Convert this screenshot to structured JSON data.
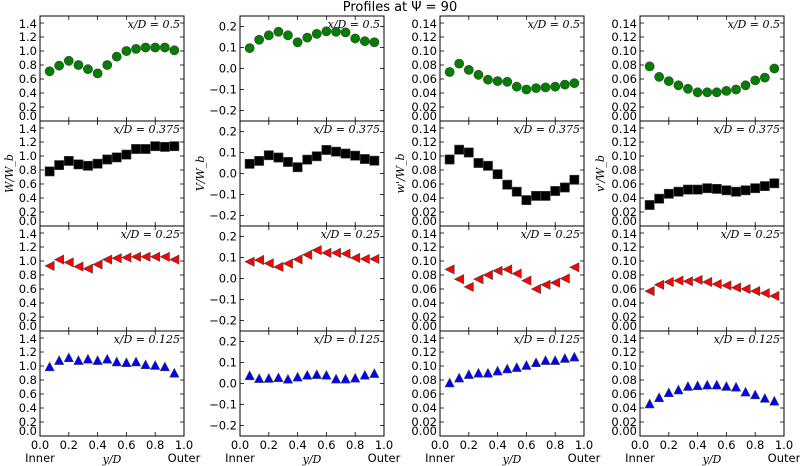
{
  "title": "Profiles at Ψ =  90",
  "x_end_labels": {
    "inner": "Inner",
    "outer": "Outer"
  },
  "chart_data": {
    "type": "scatter",
    "layout": "4 rows x 4 columns, shared x-axis per column",
    "x": [
      0.067,
      0.133,
      0.2,
      0.267,
      0.333,
      0.4,
      0.467,
      0.533,
      0.6,
      0.667,
      0.733,
      0.8,
      0.867,
      0.933
    ],
    "xlim": [
      0,
      1
    ],
    "xticks": [
      "0.0",
      "0.2",
      "0.4",
      "0.6",
      "0.8",
      "1.0"
    ],
    "xlabel": "y/D",
    "rows": [
      {
        "annotation": "x/D = 0.5",
        "marker": "circle",
        "color": "#007f00"
      },
      {
        "annotation": "x/D = 0.375",
        "marker": "square",
        "color": "#000000"
      },
      {
        "annotation": "x/D = 0.25",
        "marker": "triangle-left",
        "color": "#ff0000"
      },
      {
        "annotation": "x/D = 0.125",
        "marker": "triangle-up",
        "color": "#0000ff"
      }
    ],
    "columns": [
      {
        "ylabel": "W/W_b",
        "ylim": [
          0,
          1.5
        ],
        "yticks": [
          "0.0",
          "0.2",
          "0.4",
          "0.6",
          "0.8",
          "1.0",
          "1.2",
          "1.4"
        ],
        "series": [
          [
            0.71,
            0.79,
            0.86,
            0.8,
            0.74,
            0.68,
            0.8,
            0.92,
            1.0,
            1.03,
            1.05,
            1.05,
            1.05,
            1.01
          ],
          [
            0.78,
            0.87,
            0.93,
            0.88,
            0.86,
            0.89,
            0.95,
            0.98,
            1.02,
            1.1,
            1.1,
            1.14,
            1.13,
            1.14
          ],
          [
            0.93,
            1.02,
            0.98,
            0.92,
            0.89,
            0.95,
            1.02,
            1.04,
            1.05,
            1.06,
            1.06,
            1.06,
            1.06,
            1.02
          ],
          [
            0.99,
            1.08,
            1.12,
            1.08,
            1.1,
            1.08,
            1.1,
            1.06,
            1.05,
            1.06,
            1.02,
            1.01,
            0.99,
            0.9
          ]
        ]
      },
      {
        "ylabel": "V/W_b",
        "ylim": [
          -0.25,
          0.25
        ],
        "yticks": [
          "−0.2",
          "−0.1",
          "0.0",
          "0.1",
          "0.2"
        ],
        "series": [
          [
            0.097,
            0.137,
            0.158,
            0.175,
            0.158,
            0.125,
            0.147,
            0.165,
            0.177,
            0.175,
            0.172,
            0.143,
            0.13,
            0.125
          ],
          [
            0.046,
            0.06,
            0.087,
            0.076,
            0.055,
            0.03,
            0.066,
            0.082,
            0.112,
            0.104,
            0.095,
            0.085,
            0.069,
            0.061
          ],
          [
            0.08,
            0.088,
            0.072,
            0.055,
            0.071,
            0.091,
            0.113,
            0.135,
            0.122,
            0.122,
            0.118,
            0.098,
            0.093,
            0.093
          ],
          [
            0.038,
            0.024,
            0.025,
            0.028,
            0.021,
            0.031,
            0.04,
            0.043,
            0.04,
            0.022,
            0.022,
            0.026,
            0.04,
            0.048
          ]
        ]
      },
      {
        "ylabel": "w'/W_b",
        "ylim": [
          0,
          0.15
        ],
        "yticks": [
          "0.00",
          "0.02",
          "0.04",
          "0.06",
          "0.08",
          "0.10",
          "0.12",
          "0.14"
        ],
        "series": [
          [
            0.07,
            0.082,
            0.073,
            0.066,
            0.059,
            0.057,
            0.056,
            0.049,
            0.045,
            0.047,
            0.048,
            0.049,
            0.052,
            0.054
          ],
          [
            0.095,
            0.109,
            0.105,
            0.09,
            0.086,
            0.074,
            0.059,
            0.049,
            0.037,
            0.043,
            0.043,
            0.05,
            0.055,
            0.066
          ],
          [
            0.088,
            0.074,
            0.063,
            0.074,
            0.08,
            0.086,
            0.088,
            0.082,
            0.072,
            0.06,
            0.066,
            0.069,
            0.075,
            0.091
          ],
          [
            0.076,
            0.083,
            0.088,
            0.09,
            0.09,
            0.093,
            0.096,
            0.098,
            0.101,
            0.105,
            0.108,
            0.108,
            0.111,
            0.113
          ]
        ]
      },
      {
        "ylabel": "v'/W_b",
        "ylim": [
          0,
          0.15
        ],
        "yticks": [
          "0.00",
          "0.02",
          "0.04",
          "0.06",
          "0.08",
          "0.10",
          "0.12",
          "0.14"
        ],
        "series": [
          [
            0.078,
            0.063,
            0.057,
            0.051,
            0.046,
            0.041,
            0.041,
            0.041,
            0.043,
            0.045,
            0.051,
            0.058,
            0.062,
            0.075
          ],
          [
            0.03,
            0.039,
            0.046,
            0.049,
            0.052,
            0.052,
            0.054,
            0.053,
            0.051,
            0.049,
            0.051,
            0.054,
            0.057,
            0.061
          ],
          [
            0.057,
            0.066,
            0.07,
            0.072,
            0.071,
            0.073,
            0.07,
            0.067,
            0.065,
            0.062,
            0.06,
            0.057,
            0.054,
            0.05
          ],
          [
            0.046,
            0.055,
            0.062,
            0.066,
            0.071,
            0.072,
            0.073,
            0.073,
            0.071,
            0.07,
            0.063,
            0.059,
            0.054,
            0.05
          ]
        ]
      }
    ]
  }
}
